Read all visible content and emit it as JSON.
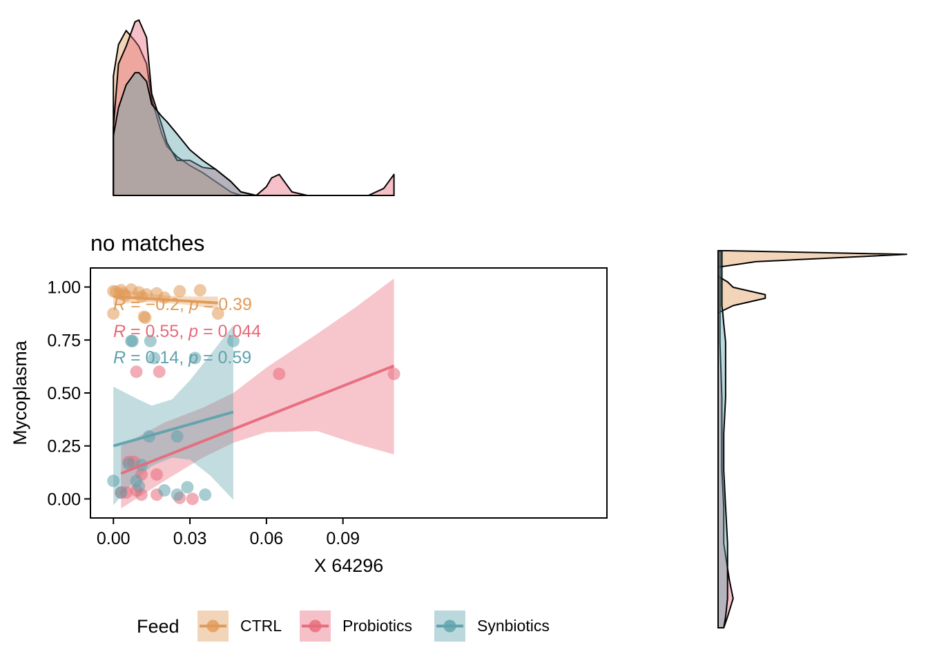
{
  "chart_data": {
    "type": "scatter",
    "title": "no matches",
    "xlabel": "X 64296",
    "ylabel": "Mycoplasma",
    "xlim": [
      -0.009,
      0.1935
    ],
    "ylim": [
      -0.09,
      1.09
    ],
    "x_ticks": [
      0.0,
      0.03,
      0.06,
      0.09
    ],
    "x_tick_labels": [
      "0.00",
      "0.03",
      "0.06",
      "0.09"
    ],
    "y_ticks": [
      0.0,
      0.25,
      0.5,
      0.75,
      1.0
    ],
    "y_tick_labels": [
      "0.00",
      "0.25",
      "0.50",
      "0.75",
      "1.00"
    ],
    "grid": false,
    "legend_position": "bottom",
    "legend_title": "Feed",
    "series": [
      {
        "name": "CTRL",
        "color": "#E09A58",
        "points": [
          [
            0.0,
            0.98
          ],
          [
            0.001,
            0.978
          ],
          [
            0.003,
            0.985
          ],
          [
            0.004,
            0.97
          ],
          [
            0.0045,
            0.96
          ],
          [
            0.007,
            0.988
          ],
          [
            0.01,
            0.975
          ],
          [
            0.013,
            0.965
          ],
          [
            0.011,
            0.955
          ],
          [
            0.017,
            0.97
          ],
          [
            0.02,
            0.95
          ],
          [
            0.026,
            0.98
          ],
          [
            0.034,
            0.985
          ],
          [
            0.041,
            0.875
          ],
          [
            0.0,
            0.875
          ],
          [
            0.012,
            0.86
          ],
          [
            0.0125,
            0.855
          ]
        ],
        "fit": {
          "x": [
            0.0,
            0.041
          ],
          "y": [
            0.955,
            0.925
          ]
        },
        "band": {
          "x": [
            0.0,
            0.01,
            0.02,
            0.03,
            0.041
          ],
          "upper": [
            0.995,
            0.975,
            0.96,
            0.955,
            0.955
          ],
          "lower": [
            0.915,
            0.93,
            0.925,
            0.915,
            0.895
          ]
        },
        "stats": {
          "label_r": "R",
          "r_value": "= −0.2,",
          "label_p": "p",
          "p_value": "= 0.39"
        }
      },
      {
        "name": "Probiotics",
        "color": "#E76A7A",
        "points": [
          [
            0.009,
            0.6
          ],
          [
            0.018,
            0.6
          ],
          [
            0.065,
            0.59
          ],
          [
            0.11,
            0.59
          ],
          [
            0.006,
            0.175
          ],
          [
            0.008,
            0.175
          ],
          [
            0.017,
            0.115
          ],
          [
            0.011,
            0.115
          ],
          [
            0.003,
            0.03
          ],
          [
            0.005,
            0.03
          ],
          [
            0.011,
            0.02
          ],
          [
            0.017,
            0.02
          ],
          [
            0.026,
            0.005
          ],
          [
            0.031,
            0.0
          ],
          [
            0.009,
            0.04
          ]
        ],
        "fit": {
          "x": [
            0.003,
            0.11
          ],
          "y": [
            0.12,
            0.628
          ]
        },
        "band": {
          "x": [
            0.003,
            0.02,
            0.035,
            0.047,
            0.06,
            0.08,
            0.095,
            0.11
          ],
          "upper": [
            0.25,
            0.36,
            0.43,
            0.5,
            0.62,
            0.78,
            0.905,
            1.04
          ],
          "lower": [
            -0.045,
            0.085,
            0.195,
            0.265,
            0.315,
            0.32,
            0.26,
            0.21
          ]
        },
        "stats": {
          "label_r": "R",
          "r_value": "= 0.55,",
          "label_p": "p",
          "p_value": "= 0.044"
        }
      },
      {
        "name": "Synbiotics",
        "color": "#5EA2AC",
        "points": [
          [
            0.007,
            0.745
          ],
          [
            0.0075,
            0.745
          ],
          [
            0.0145,
            0.745
          ],
          [
            0.047,
            0.745
          ],
          [
            0.016,
            0.665
          ],
          [
            0.032,
            0.665
          ],
          [
            0.014,
            0.295
          ],
          [
            0.025,
            0.295
          ],
          [
            0.006,
            0.165
          ],
          [
            0.011,
            0.16
          ],
          [
            0.0,
            0.085
          ],
          [
            0.009,
            0.085
          ],
          [
            0.01,
            0.06
          ],
          [
            0.02,
            0.04
          ],
          [
            0.029,
            0.055
          ],
          [
            0.025,
            0.02
          ],
          [
            0.036,
            0.02
          ],
          [
            0.003,
            0.03
          ]
        ],
        "fit": {
          "x": [
            0.0,
            0.047
          ],
          "y": [
            0.25,
            0.41
          ]
        },
        "band": {
          "x": [
            0.0,
            0.008,
            0.015,
            0.023,
            0.03,
            0.038,
            0.047
          ],
          "upper": [
            0.53,
            0.48,
            0.44,
            0.47,
            0.56,
            0.68,
            0.82
          ],
          "lower": [
            -0.03,
            0.08,
            0.155,
            0.195,
            0.185,
            0.11,
            -0.005
          ]
        },
        "stats": {
          "label_r": "R",
          "r_value": "= 0.14,",
          "label_p": "p",
          "p_value": "= 0.59"
        }
      }
    ],
    "x_density": {
      "grid": [
        0.0,
        0.002,
        0.005,
        0.0085,
        0.01,
        0.013,
        0.015,
        0.019,
        0.021,
        0.025,
        0.03,
        0.035,
        0.04,
        0.046,
        0.05,
        0.056,
        0.06,
        0.062,
        0.065,
        0.068,
        0.07,
        0.076,
        0.08,
        0.089,
        0.1,
        0.106,
        0.11
      ],
      "CTRL": [
        0.68,
        0.86,
        0.94,
        0.88,
        0.85,
        0.75,
        0.55,
        0.35,
        0.28,
        0.22,
        0.17,
        0.13,
        0.08,
        0.02,
        0.0,
        0.0,
        0.0,
        0.0,
        0.0,
        0.0,
        0.0,
        0.0,
        0.0,
        0.0,
        0.0,
        0.0,
        0.0
      ],
      "Probiotics": [
        0.39,
        0.75,
        0.85,
        0.99,
        1.0,
        0.9,
        0.58,
        0.4,
        0.3,
        0.2,
        0.2,
        0.16,
        0.15,
        0.08,
        0.02,
        0.0,
        0.05,
        0.1,
        0.12,
        0.06,
        0.02,
        0.0,
        0.0,
        0.0,
        0.0,
        0.04,
        0.12
      ],
      "Synbiotics": [
        0.34,
        0.5,
        0.63,
        0.7,
        0.7,
        0.65,
        0.52,
        0.45,
        0.42,
        0.35,
        0.26,
        0.2,
        0.15,
        0.08,
        0.02,
        0.0,
        0.0,
        0.0,
        0.0,
        0.0,
        0.0,
        0.0,
        0.0,
        0.0,
        0.0,
        0.0,
        0.0
      ]
    },
    "y_density": {
      "grid": [
        1.0,
        0.99,
        0.97,
        0.955,
        0.94,
        0.93,
        0.915,
        0.9,
        0.88,
        0.87,
        0.85,
        0.83,
        0.8,
        0.75,
        0.6,
        0.5,
        0.4,
        0.3,
        0.2,
        0.1,
        0.05,
        0.0,
        -0.03
      ],
      "CTRL": [
        0.05,
        1.0,
        0.2,
        0.0,
        0.0,
        0.0,
        0.05,
        0.08,
        0.25,
        0.25,
        0.08,
        0.0,
        0.0,
        0.0,
        0.0,
        0.0,
        0.0,
        0.0,
        0.0,
        0.0,
        0.0,
        0.0,
        0.0
      ],
      "Probiotics": [
        0.01,
        0.01,
        0.01,
        0.01,
        0.01,
        0.01,
        0.01,
        0.01,
        0.01,
        0.01,
        0.01,
        0.01,
        0.01,
        0.01,
        0.02,
        0.02,
        0.02,
        0.03,
        0.03,
        0.06,
        0.08,
        0.05,
        0.03
      ],
      "Synbiotics": [
        0.02,
        0.02,
        0.02,
        0.02,
        0.02,
        0.02,
        0.02,
        0.02,
        0.02,
        0.02,
        0.02,
        0.025,
        0.03,
        0.04,
        0.04,
        0.03,
        0.03,
        0.04,
        0.05,
        0.05,
        0.05,
        0.04,
        0.03
      ]
    }
  }
}
